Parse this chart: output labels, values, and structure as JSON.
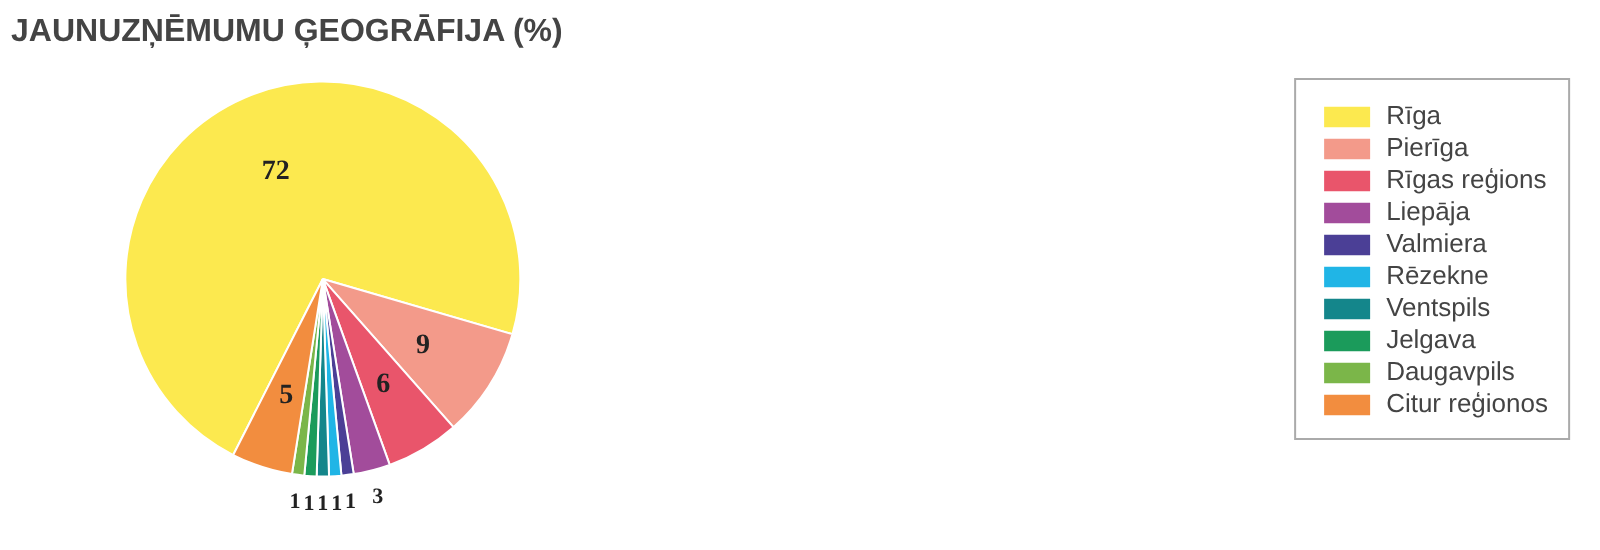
{
  "chart_data": {
    "type": "pie",
    "title": "JAUNUZŅĒMUMU ĢEOGRĀFIJA (%)",
    "categories": [
      "Rīga",
      "Pierīga",
      "Rīgas reģions",
      "Liepāja",
      "Valmiera",
      "Rēzekne",
      "Ventspils",
      "Jelgava",
      "Daugavpils",
      "Citur reģionos"
    ],
    "values": [
      72,
      9,
      6,
      3,
      1,
      1,
      1,
      1,
      1,
      5
    ],
    "colors": [
      "#fce94f",
      "#f39a8a",
      "#e9556b",
      "#a24c9b",
      "#4b3f96",
      "#20b5e6",
      "#14868b",
      "#1b9b5b",
      "#7bb649",
      "#f28d3f"
    ],
    "data_labels": true,
    "legend": "right"
  }
}
